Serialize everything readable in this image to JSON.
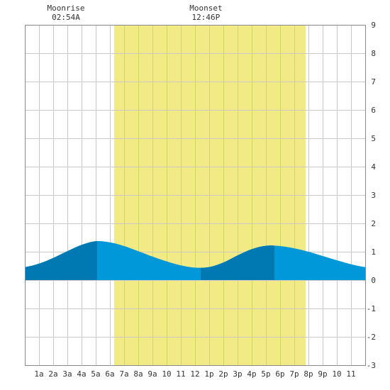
{
  "header": {
    "moonrise_label": "Moonrise",
    "moonrise_time": "02:54A",
    "moonset_label": "Moonset",
    "moonset_time": "12:46P"
  },
  "chart_data": {
    "type": "area",
    "title": "",
    "xlabel": "",
    "ylabel": "",
    "x_range_hours": [
      0,
      24
    ],
    "ylim": [
      -3,
      9
    ],
    "grid": true,
    "x_tick_labels": [
      "1a",
      "2a",
      "3a",
      "4a",
      "5a",
      "6a",
      "7a",
      "8a",
      "9a",
      "10",
      "11",
      "12",
      "1p",
      "2p",
      "3p",
      "4p",
      "5p",
      "6p",
      "7p",
      "8p",
      "9p",
      "10",
      "11"
    ],
    "y_tick_labels": [
      "9",
      "8",
      "7",
      "6",
      "5",
      "4",
      "3",
      "2",
      "1",
      "0",
      "-1",
      "-2",
      "-3"
    ],
    "daylight_hours": [
      6.3,
      19.8
    ],
    "moonrise_hour": 2.9,
    "moonset_hour": 12.77,
    "tide_extremes": [
      {
        "type": "high",
        "hour": 5.1,
        "height": 1.38
      },
      {
        "type": "low",
        "hour": 12.4,
        "height": 0.43
      },
      {
        "type": "high",
        "hour": 17.6,
        "height": 1.22
      }
    ],
    "tide_series": {
      "hours": [
        0,
        1,
        2,
        3,
        4,
        5,
        6,
        7,
        8,
        9,
        10,
        11,
        12,
        13,
        14,
        15,
        16,
        17,
        18,
        19,
        20,
        21,
        22,
        23,
        24
      ],
      "heights": [
        0.46,
        0.58,
        0.78,
        1.02,
        1.24,
        1.37,
        1.33,
        1.2,
        1.02,
        0.83,
        0.66,
        0.52,
        0.44,
        0.46,
        0.62,
        0.87,
        1.09,
        1.21,
        1.2,
        1.12,
        1.0,
        0.85,
        0.7,
        0.56,
        0.46
      ]
    },
    "colors": {
      "daylight": "#f2ea84",
      "tide_primary": "#0098d8",
      "tide_dark": "#0079b2",
      "grid": "#c8c8c8",
      "frame": "#888888"
    },
    "dark_shading_hour_ranges": [
      [
        0,
        5.1
      ],
      [
        12.4,
        17.6
      ]
    ]
  }
}
